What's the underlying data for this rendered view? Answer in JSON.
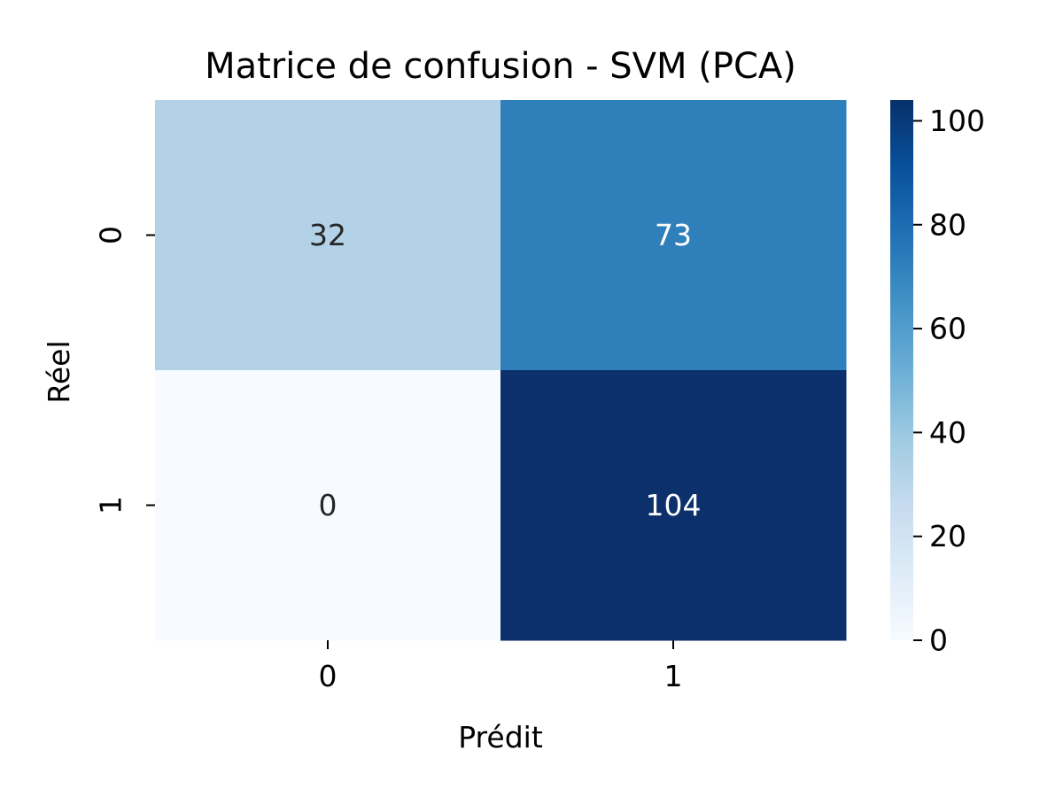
{
  "chart_data": {
    "type": "heatmap",
    "title": "Matrice de confusion - SVM (PCA)",
    "xlabel": "Prédit",
    "ylabel": "Réel",
    "x_categories": [
      "0",
      "1"
    ],
    "y_categories": [
      "0",
      "1"
    ],
    "values": [
      [
        32,
        73
      ],
      [
        0,
        104
      ]
    ],
    "colormap": "Blues",
    "colorbar": {
      "min": 0,
      "max": 104,
      "ticks": [
        0,
        20,
        40,
        60,
        80,
        100
      ]
    },
    "cell_colors": [
      [
        "#b3d2e8",
        "#2f7fba"
      ],
      [
        "#f7fbff",
        "#0b306b"
      ]
    ],
    "annotation_colors": {
      "light": "#262626",
      "dark": "#ffffff"
    },
    "grid": false
  }
}
